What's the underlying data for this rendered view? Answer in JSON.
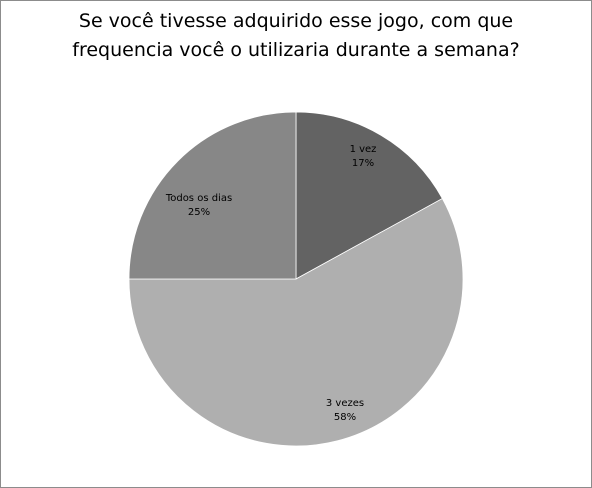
{
  "chart_data": {
    "type": "pie",
    "title_lines": [
      "Se você tivesse adquirido esse jogo, com que",
      "frequencia você o utilizaria durante a semana?"
    ],
    "slices": [
      {
        "name": "1 vez",
        "value": 17,
        "label": "17%",
        "color": "#636363"
      },
      {
        "name": "3 vezes",
        "value": 58,
        "label": "58%",
        "color": "#afafaf"
      },
      {
        "name": "Todos os dias",
        "value": 25,
        "label": "25%",
        "color": "#878787"
      }
    ],
    "start_angle_deg": 0,
    "direction": "clockwise",
    "legend": "none"
  }
}
